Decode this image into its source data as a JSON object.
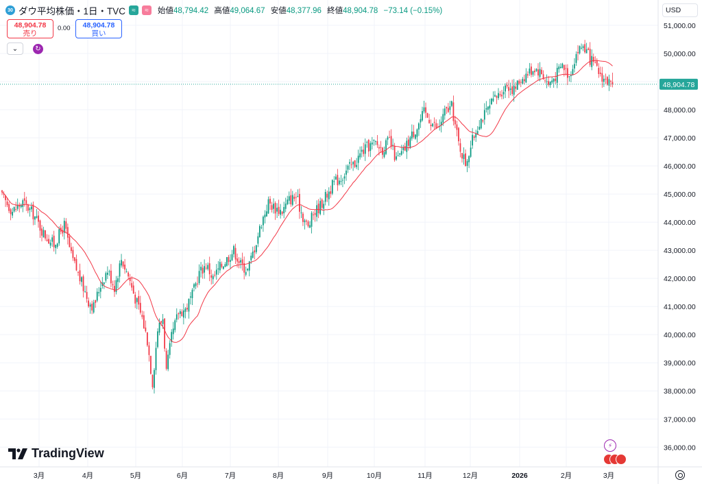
{
  "legend": {
    "badge": "30",
    "title": "ダウ平均株価・1日・TVC",
    "open_label": "始値",
    "open_value": "48,794.42",
    "high_label": "高値",
    "high_value": "49,064.67",
    "low_label": "安値",
    "low_value": "48,377.96",
    "close_label": "終値",
    "close_value": "48,904.78",
    "change": "−73.14 (−0.15%)"
  },
  "trade": {
    "sell_price": "48,904.78",
    "sell_label": "売り",
    "spread": "0.00",
    "buy_price": "48,904.78",
    "buy_label": "買い"
  },
  "currency": "USD",
  "watermark": "TradingView",
  "last_price_tag": "48,904.78",
  "colors": {
    "up": "#089981",
    "down": "#f23645",
    "ma": "#f23645",
    "last": "#26a69a"
  },
  "chart_data": {
    "type": "candlestick",
    "y_ticks": [
      "51,000.00",
      "50,000.00",
      "49,000.00",
      "48,000.00",
      "47,000.00",
      "46,000.00",
      "45,000.00",
      "44,000.00",
      "43,000.00",
      "42,000.00",
      "41,000.00",
      "40,000.00",
      "39,000.00",
      "38,000.00",
      "37,000.00",
      "36,000.00"
    ],
    "y_tick_values": [
      51000,
      50000,
      49000,
      48000,
      47000,
      46000,
      45000,
      44000,
      43000,
      42000,
      41000,
      40000,
      39000,
      38000,
      37000,
      36000
    ],
    "x_labels": [
      "3月",
      "4月",
      "5月",
      "6月",
      "7月",
      "8月",
      "9月",
      "10月",
      "11月",
      "12月",
      "2026",
      "2月",
      "3月"
    ],
    "ylim": [
      35300,
      51900
    ],
    "last_price": 48904.78,
    "close_path": [
      [
        0,
        44900
      ],
      [
        6,
        44400
      ],
      [
        12,
        44700
      ],
      [
        18,
        44300
      ],
      [
        24,
        43600
      ],
      [
        30,
        43200
      ],
      [
        36,
        43900
      ],
      [
        40,
        42800
      ],
      [
        45,
        42000
      ],
      [
        50,
        41200
      ],
      [
        53,
        41000
      ],
      [
        57,
        41800
      ],
      [
        61,
        42300
      ],
      [
        65,
        41700
      ],
      [
        69,
        42700
      ],
      [
        73,
        42100
      ],
      [
        77,
        41300
      ],
      [
        81,
        40600
      ],
      [
        84,
        39800
      ],
      [
        87,
        38300
      ],
      [
        90,
        40200
      ],
      [
        93,
        40600
      ],
      [
        95,
        38700
      ],
      [
        98,
        39900
      ],
      [
        102,
        40800
      ],
      [
        106,
        40900
      ],
      [
        110,
        41400
      ],
      [
        114,
        42200
      ],
      [
        118,
        42500
      ],
      [
        122,
        42000
      ],
      [
        126,
        42400
      ],
      [
        130,
        42700
      ],
      [
        134,
        43000
      ],
      [
        138,
        42500
      ],
      [
        142,
        42300
      ],
      [
        146,
        43100
      ],
      [
        150,
        44000
      ],
      [
        154,
        44700
      ],
      [
        158,
        44500
      ],
      [
        162,
        44400
      ],
      [
        166,
        44800
      ],
      [
        170,
        44900
      ],
      [
        174,
        44200
      ],
      [
        177,
        43800
      ],
      [
        180,
        44300
      ],
      [
        184,
        44600
      ],
      [
        188,
        45000
      ],
      [
        192,
        45400
      ],
      [
        196,
        45600
      ],
      [
        200,
        45900
      ],
      [
        204,
        46100
      ],
      [
        208,
        46500
      ],
      [
        212,
        46700
      ],
      [
        216,
        46800
      ],
      [
        220,
        46600
      ],
      [
        224,
        46900
      ],
      [
        228,
        46200
      ],
      [
        232,
        46500
      ],
      [
        236,
        47000
      ],
      [
        240,
        47400
      ],
      [
        244,
        47900
      ],
      [
        248,
        47600
      ],
      [
        252,
        47300
      ],
      [
        256,
        47900
      ],
      [
        260,
        48100
      ],
      [
        264,
        46800
      ],
      [
        268,
        46100
      ],
      [
        272,
        46900
      ],
      [
        276,
        47600
      ],
      [
        280,
        47900
      ],
      [
        284,
        48300
      ],
      [
        288,
        48600
      ],
      [
        292,
        48900
      ],
      [
        296,
        48700
      ],
      [
        300,
        49100
      ],
      [
        304,
        49300
      ],
      [
        308,
        49500
      ],
      [
        312,
        49300
      ],
      [
        316,
        48900
      ],
      [
        320,
        49200
      ],
      [
        324,
        49600
      ],
      [
        328,
        49200
      ],
      [
        332,
        50000
      ],
      [
        336,
        50300
      ],
      [
        340,
        49800
      ],
      [
        344,
        49400
      ],
      [
        348,
        49100
      ],
      [
        352,
        48904.78
      ]
    ]
  }
}
